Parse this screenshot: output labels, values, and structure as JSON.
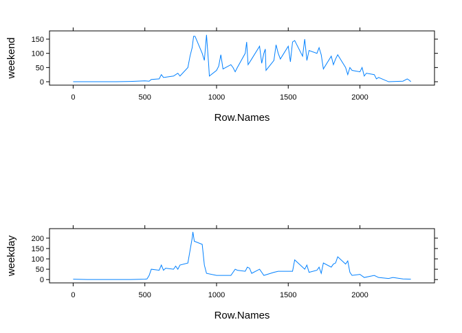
{
  "chart_data": [
    {
      "type": "line",
      "xlabel": "Row.Names",
      "ylabel": "weekend",
      "color": "#0080ff",
      "x": [
        0,
        100,
        200,
        300,
        400,
        500,
        530,
        545,
        600,
        615,
        630,
        700,
        730,
        745,
        800,
        815,
        830,
        840,
        850,
        900,
        915,
        930,
        945,
        950,
        1000,
        1015,
        1030,
        1045,
        1100,
        1115,
        1130,
        1145,
        1200,
        1210,
        1220,
        1245,
        1300,
        1315,
        1330,
        1340,
        1345,
        1400,
        1415,
        1430,
        1445,
        1500,
        1515,
        1530,
        1545,
        1600,
        1615,
        1630,
        1645,
        1700,
        1715,
        1730,
        1745,
        1800,
        1815,
        1830,
        1845,
        1900,
        1915,
        1930,
        1945,
        2000,
        2015,
        2030,
        2045,
        2100,
        2115,
        2130,
        2200,
        2300,
        2330,
        2345,
        2355
      ],
      "values": [
        0.2,
        0,
        0,
        0,
        1,
        3,
        2,
        8,
        10,
        25,
        15,
        20,
        30,
        20,
        50,
        90,
        120,
        160,
        160,
        100,
        75,
        165,
        60,
        20,
        40,
        55,
        95,
        45,
        60,
        50,
        35,
        50,
        100,
        140,
        60,
        80,
        125,
        65,
        100,
        115,
        40,
        75,
        130,
        100,
        80,
        125,
        70,
        140,
        145,
        90,
        150,
        75,
        110,
        100,
        120,
        95,
        45,
        90,
        60,
        80,
        95,
        50,
        25,
        50,
        40,
        35,
        50,
        20,
        30,
        25,
        10,
        15,
        0,
        2,
        10,
        5,
        0
      ],
      "xlim": [
        -165,
        2520
      ],
      "xticks": [
        0,
        500,
        1000,
        1500,
        2000
      ],
      "ylim": [
        -12,
        179
      ],
      "yticks": [
        0,
        50,
        100,
        150
      ]
    },
    {
      "type": "line",
      "xlabel": "Row.Names",
      "ylabel": "weekday",
      "color": "#0080ff",
      "x": [
        0,
        100,
        200,
        300,
        400,
        500,
        515,
        530,
        545,
        600,
        615,
        630,
        645,
        700,
        715,
        730,
        745,
        800,
        815,
        830,
        835,
        845,
        900,
        915,
        930,
        1000,
        1030,
        1100,
        1130,
        1145,
        1200,
        1215,
        1230,
        1245,
        1300,
        1330,
        1400,
        1430,
        1500,
        1530,
        1545,
        1600,
        1615,
        1630,
        1645,
        1700,
        1715,
        1730,
        1745,
        1800,
        1815,
        1830,
        1845,
        1900,
        1915,
        1930,
        1945,
        2000,
        2030,
        2100,
        2130,
        2200,
        2230,
        2300,
        2355
      ],
      "values": [
        2,
        0,
        0,
        0,
        0,
        2,
        3,
        20,
        50,
        45,
        70,
        45,
        55,
        50,
        65,
        50,
        70,
        80,
        140,
        200,
        230,
        185,
        170,
        70,
        30,
        20,
        20,
        20,
        50,
        45,
        40,
        60,
        55,
        30,
        50,
        20,
        35,
        40,
        40,
        40,
        95,
        60,
        50,
        70,
        35,
        45,
        60,
        30,
        80,
        60,
        75,
        80,
        110,
        75,
        90,
        35,
        20,
        25,
        10,
        20,
        10,
        5,
        10,
        3,
        2
      ],
      "xlim": [
        -165,
        2520
      ],
      "xticks": [
        0,
        500,
        1000,
        1500,
        2000
      ],
      "ylim": [
        -16,
        246
      ],
      "yticks": [
        0,
        50,
        100,
        150,
        200
      ]
    }
  ]
}
